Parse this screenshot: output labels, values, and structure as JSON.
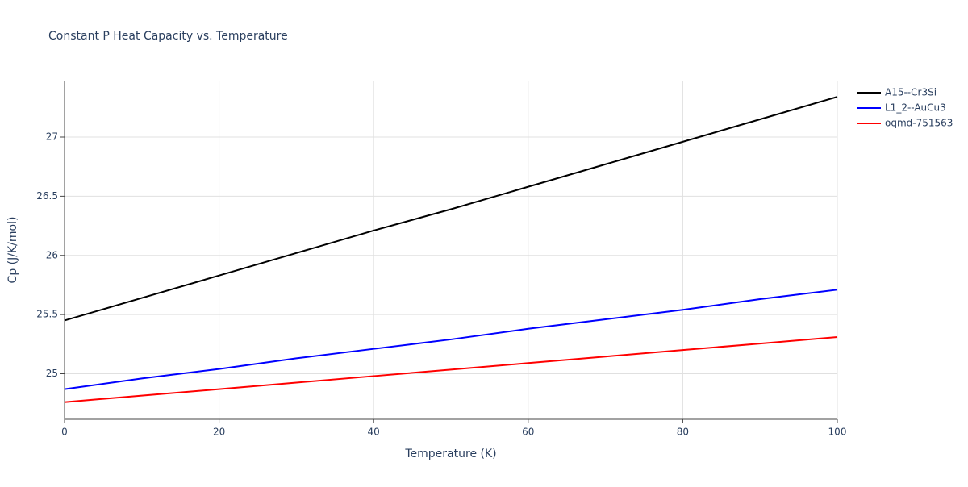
{
  "chart_data": {
    "type": "line",
    "title": "Constant P Heat Capacity vs. Temperature",
    "x_label": "Temperature (K)",
    "y_label": "Cp (J/K/mol)",
    "x": [
      0,
      10,
      20,
      30,
      40,
      50,
      60,
      70,
      80,
      90,
      100
    ],
    "series": [
      {
        "name": "A15--Cr3Si",
        "color": "#000000",
        "values": [
          25.45,
          25.64,
          25.83,
          26.02,
          26.21,
          26.39,
          26.58,
          26.77,
          26.96,
          27.15,
          27.34
        ]
      },
      {
        "name": "L1_2--AuCu3",
        "color": "#0000ff",
        "values": [
          24.87,
          24.96,
          25.04,
          25.13,
          25.21,
          25.29,
          25.38,
          25.46,
          25.54,
          25.63,
          25.71
        ]
      },
      {
        "name": "oqmd-751563",
        "color": "#ff0000",
        "values": [
          24.76,
          24.815,
          24.87,
          24.925,
          24.98,
          25.035,
          25.09,
          25.145,
          25.2,
          25.255,
          25.31
        ]
      }
    ],
    "xlim": [
      0,
      100
    ],
    "xticks": [
      0,
      20,
      40,
      60,
      80,
      100
    ],
    "ylim": [
      24.615,
      27.477
    ],
    "yticks": [
      25,
      25.5,
      26,
      26.5,
      27
    ],
    "grid": true,
    "legend": "top-right"
  }
}
